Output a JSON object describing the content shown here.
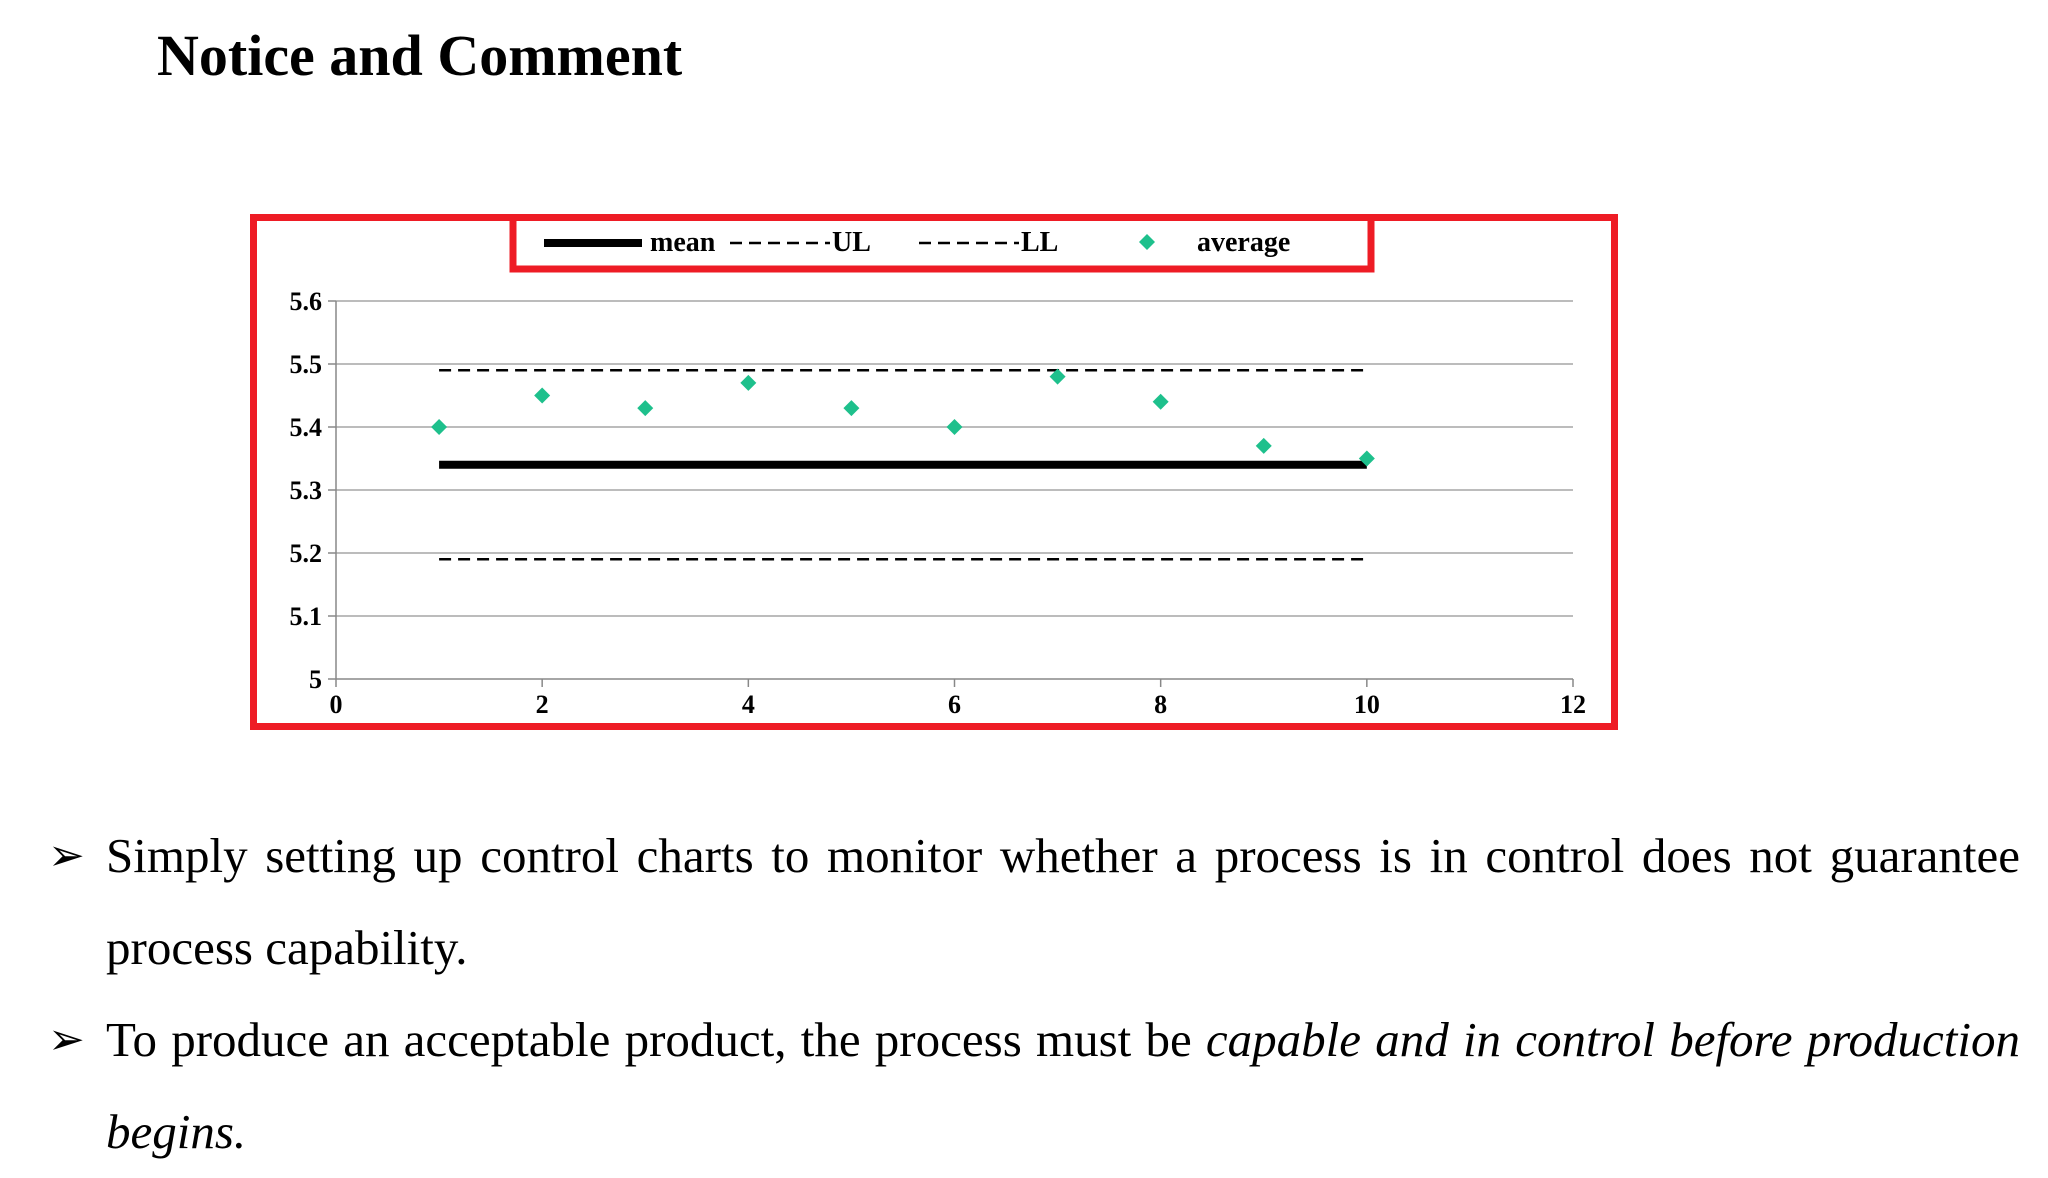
{
  "slide": {
    "title": "Notice and Comment",
    "bullets": [
      {
        "icon": "arrowhead-bullet-icon",
        "text": "Simply setting up control charts to monitor whether a process is in control does not guarantee process capability."
      },
      {
        "icon": "arrowhead-bullet-icon",
        "text_plain": "To produce an acceptable product, the process must be ",
        "text_italic": "capable and in control before production begins."
      }
    ]
  },
  "chart_data": {
    "type": "scatter",
    "xlim": [
      0,
      12
    ],
    "ylim": [
      5,
      5.6
    ],
    "x_ticks": [
      "0",
      "2",
      "4",
      "6",
      "8",
      "10",
      "12"
    ],
    "y_ticks": [
      "5",
      "5.1",
      "5.2",
      "5.3",
      "5.4",
      "5.5",
      "5.6"
    ],
    "grid": "horizontal",
    "legend_position": "top",
    "series": [
      {
        "name": "mean",
        "kind": "line",
        "style": "solid",
        "color": "#000000",
        "x": [
          1,
          10
        ],
        "y": [
          5.34,
          5.34
        ]
      },
      {
        "name": "UL",
        "kind": "line",
        "style": "dashed",
        "color": "#000000",
        "x": [
          1,
          10
        ],
        "y": [
          5.49,
          5.49
        ]
      },
      {
        "name": "LL",
        "kind": "line",
        "style": "dashed",
        "color": "#000000",
        "x": [
          1,
          10
        ],
        "y": [
          5.19,
          5.19
        ]
      },
      {
        "name": "average",
        "kind": "marker",
        "marker": "diamond",
        "color": "#1ec08c",
        "x": [
          1,
          2,
          3,
          4,
          5,
          6,
          7,
          8,
          9,
          10
        ],
        "y": [
          5.4,
          5.45,
          5.43,
          5.47,
          5.43,
          5.4,
          5.48,
          5.44,
          5.37,
          5.35
        ]
      }
    ],
    "highlight_color": "#ee1c25"
  }
}
